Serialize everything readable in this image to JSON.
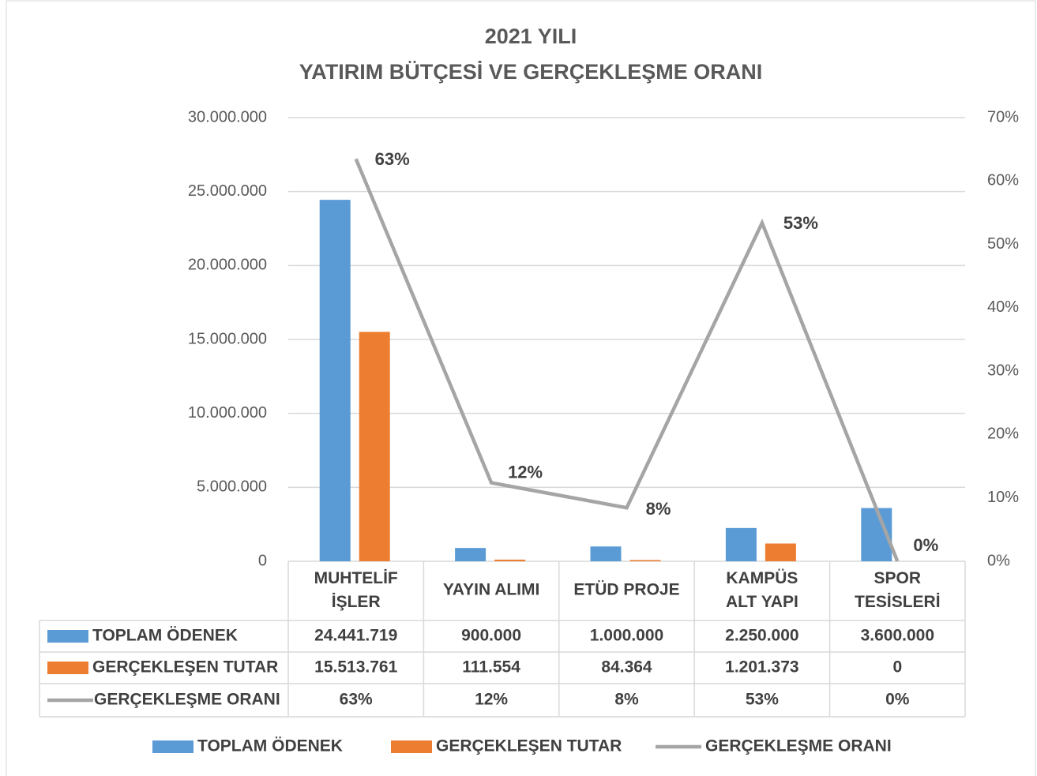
{
  "chart_data": {
    "type": "bar_line_table",
    "title": [
      "2021 YILI",
      "YATIRIM BÜTÇESİ VE GERÇEKLEŞME ORANI"
    ],
    "categories": [
      "MUHTELİF\nİŞLER",
      "YAYIN ALIMI",
      "ETÜD PROJE",
      "KAMPÜS\nALT YAPI",
      "SPOR\nTESİSLERİ"
    ],
    "series": [
      {
        "name": "TOPLAM ÖDENEK",
        "color": "#5b9bd5",
        "type": "bar",
        "axis": "y",
        "values": [
          24441719,
          900000,
          1000000,
          2250000,
          3600000
        ],
        "value_labels": [
          "24.441.719",
          "900.000",
          "1.000.000",
          "2.250.000",
          "3.600.000"
        ]
      },
      {
        "name": "GERÇEKLEŞEN TUTAR",
        "color": "#ed7d31",
        "type": "bar",
        "axis": "y",
        "values": [
          15513761,
          111554,
          84364,
          1201373,
          0
        ],
        "value_labels": [
          "15.513.761",
          "111.554",
          "84.364",
          "1.201.373",
          "0"
        ]
      },
      {
        "name": "GERÇEKLEŞME ORANI",
        "color": "#a5a5a5",
        "type": "line",
        "axis": "y2",
        "values": [
          63.47,
          12.39,
          8.44,
          53.39,
          0
        ],
        "value_labels": [
          "63%",
          "12%",
          "8%",
          "53%",
          "0%"
        ]
      }
    ],
    "ylim": [
      0,
      30000000
    ],
    "yticks": [
      0,
      {
        "value": 5000000,
        "label": "5.000.000"
      },
      {
        "value": 10000000,
        "label": "10.000.000"
      },
      {
        "value": 15000000,
        "label": "15.000.000"
      },
      {
        "value": 20000000,
        "label": "20.000.000"
      },
      {
        "value": 25000000,
        "label": "25.000.000"
      },
      {
        "value": 30000000,
        "label": "30.000.000"
      }
    ],
    "y2lim": [
      0,
      70
    ],
    "y2ticks": [
      {
        "value": 0,
        "label": "0%"
      },
      {
        "value": 10,
        "label": "10%"
      },
      {
        "value": 20,
        "label": "20%"
      },
      {
        "value": 30,
        "label": "30%"
      },
      {
        "value": 40,
        "label": "40%"
      },
      {
        "value": 50,
        "label": "50%"
      },
      {
        "value": 60,
        "label": "60%"
      },
      {
        "value": 70,
        "label": "70%"
      }
    ],
    "grid": true,
    "legend": "bottom"
  }
}
